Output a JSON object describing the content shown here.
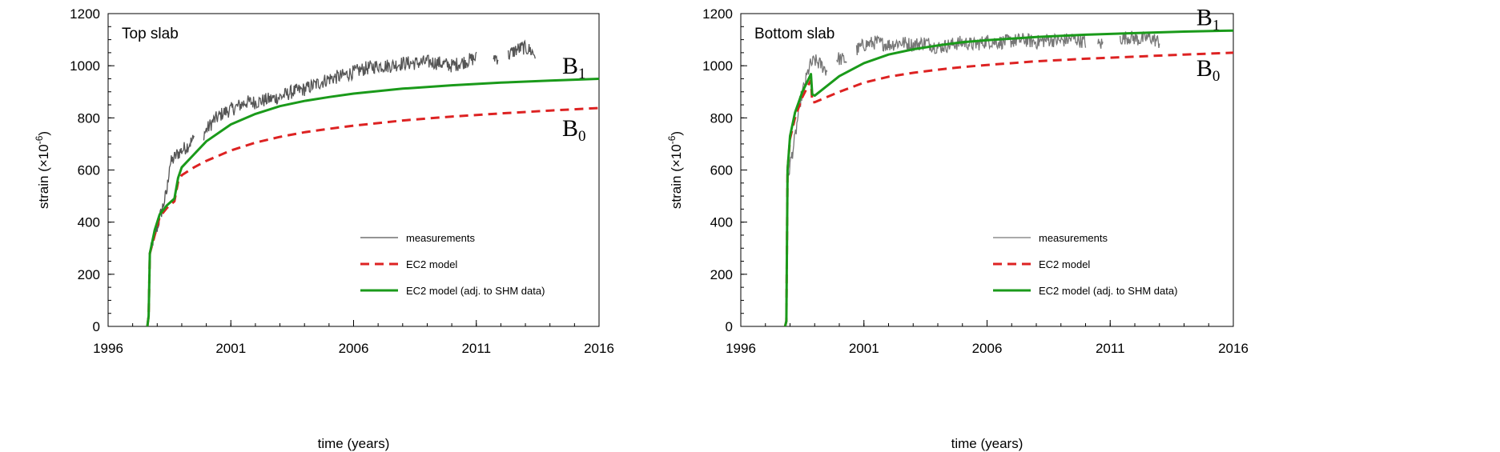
{
  "chart_data": [
    {
      "type": "line",
      "title": "Top slab",
      "xlabel": "time (years)",
      "ylabel_base": "strain (×10",
      "ylabel_exp": "-6",
      "ylabel_close": ")",
      "xlim": [
        1996,
        2016
      ],
      "ylim": [
        0,
        1200
      ],
      "xticks": [
        1996,
        2001,
        2006,
        2011,
        2016
      ],
      "yticks": [
        0,
        200,
        400,
        600,
        800,
        1000,
        1200
      ],
      "legend": [
        "measurements",
        "EC2 model",
        "EC2 model (adj. to SHM data)"
      ],
      "legend_position": "bottom-right",
      "curve_labels": [
        {
          "text": "B",
          "sub": "1",
          "x": 2014.5,
          "y": 970
        },
        {
          "text": "B",
          "sub": "0",
          "x": 2014.5,
          "y": 730
        }
      ],
      "series": [
        {
          "name": "measurements",
          "color": "#555555",
          "style": "noisy",
          "segments": [
            [
              [
                1997.6,
                0
              ],
              [
                1997.65,
                60
              ],
              [
                1997.7,
                260
              ],
              [
                1997.8,
                320
              ],
              [
                1997.9,
                350
              ],
              [
                1998.0,
                380
              ],
              [
                1998.2,
                450
              ],
              [
                1998.4,
                520
              ],
              [
                1998.5,
                620
              ],
              [
                1998.8,
                660
              ],
              [
                1999.2,
                690
              ],
              [
                1999.5,
                720
              ]
            ],
            [
              [
                1999.9,
                740
              ],
              [
                2000.3,
                790
              ],
              [
                2000.7,
                820
              ],
              [
                2001.2,
                840
              ],
              [
                2001.6,
                860
              ],
              [
                2002.0,
                860
              ],
              [
                2002.5,
                870
              ],
              [
                2003.0,
                880
              ],
              [
                2003.5,
                900
              ],
              [
                2004.0,
                910
              ],
              [
                2004.5,
                930
              ],
              [
                2005.0,
                950
              ],
              [
                2005.5,
                960
              ],
              [
                2006.0,
                975
              ],
              [
                2006.5,
                990
              ],
              [
                2007.0,
                1000
              ],
              [
                2007.5,
                1000
              ],
              [
                2008.0,
                1010
              ],
              [
                2008.5,
                1010
              ],
              [
                2009.0,
                1015
              ],
              [
                2009.5,
                1010
              ],
              [
                2010.0,
                1000
              ],
              [
                2010.5,
                1015
              ],
              [
                2011.0,
                1030
              ]
            ],
            [
              [
                2011.7,
                1035
              ],
              [
                2011.9,
                1030
              ]
            ],
            [
              [
                2012.3,
                1040
              ],
              [
                2012.6,
                1060
              ],
              [
                2012.9,
                1070
              ],
              [
                2013.2,
                1060
              ],
              [
                2013.4,
                1040
              ]
            ]
          ]
        },
        {
          "name": "EC2 model",
          "color": "#dd2222",
          "style": "dashed",
          "points": [
            [
              1997.6,
              0
            ],
            [
              1997.65,
              40
            ],
            [
              1997.7,
              280
            ],
            [
              1997.9,
              350
            ],
            [
              1998.1,
              420
            ],
            [
              1998.4,
              455
            ],
            [
              1998.7,
              480
            ],
            [
              1998.85,
              555
            ],
            [
              1999.0,
              580
            ],
            [
              1999.5,
              610
            ],
            [
              2000.0,
              635
            ],
            [
              2001.0,
              675
            ],
            [
              2002.0,
              705
            ],
            [
              2003.0,
              727
            ],
            [
              2004.0,
              745
            ],
            [
              2005.0,
              758
            ],
            [
              2006.0,
              770
            ],
            [
              2008.0,
              790
            ],
            [
              2010.0,
              805
            ],
            [
              2012.0,
              817
            ],
            [
              2014.0,
              828
            ],
            [
              2016.0,
              838
            ]
          ]
        },
        {
          "name": "EC2 model (adj. to SHM data)",
          "color": "#1a9a1a",
          "style": "solid",
          "points": [
            [
              1997.6,
              0
            ],
            [
              1997.65,
              40
            ],
            [
              1997.7,
              280
            ],
            [
              1997.9,
              370
            ],
            [
              1998.1,
              430
            ],
            [
              1998.4,
              465
            ],
            [
              1998.7,
              490
            ],
            [
              1998.85,
              570
            ],
            [
              1999.0,
              610
            ],
            [
              1999.5,
              660
            ],
            [
              2000.0,
              710
            ],
            [
              2001.0,
              775
            ],
            [
              2002.0,
              815
            ],
            [
              2003.0,
              845
            ],
            [
              2004.0,
              865
            ],
            [
              2005.0,
              880
            ],
            [
              2006.0,
              893
            ],
            [
              2008.0,
              912
            ],
            [
              2010.0,
              925
            ],
            [
              2012.0,
              935
            ],
            [
              2014.0,
              943
            ],
            [
              2016.0,
              950
            ]
          ]
        }
      ]
    },
    {
      "type": "line",
      "title": "Bottom slab",
      "xlabel": "time (years)",
      "ylabel_base": "strain (×10",
      "ylabel_exp": "-6",
      "ylabel_close": ")",
      "xlim": [
        1996,
        2016
      ],
      "ylim": [
        0,
        1200
      ],
      "xticks": [
        1996,
        2001,
        2006,
        2011,
        2016
      ],
      "yticks": [
        0,
        200,
        400,
        600,
        800,
        1000,
        1200
      ],
      "legend": [
        "measurements",
        "EC2 model",
        "EC2 model (adj. to SHM data)"
      ],
      "legend_position": "bottom-right",
      "curve_labels": [
        {
          "text": "B",
          "sub": "1",
          "x": 2014.5,
          "y": 1155
        },
        {
          "text": "B",
          "sub": "0",
          "x": 2014.5,
          "y": 960
        }
      ],
      "series": [
        {
          "name": "measurements",
          "color": "#777777",
          "style": "noisy",
          "segments": [
            [
              [
                1997.8,
                0
              ],
              [
                1997.85,
                40
              ],
              [
                1997.9,
                560
              ],
              [
                1998.0,
                620
              ],
              [
                1998.2,
                720
              ],
              [
                1998.4,
                860
              ],
              [
                1998.6,
                930
              ],
              [
                1998.8,
                1000
              ],
              [
                1999.0,
                1020
              ],
              [
                1999.3,
                1000
              ],
              [
                1999.5,
                980
              ]
            ],
            [
              [
                1999.9,
                1030
              ],
              [
                2000.3,
                1020
              ]
            ],
            [
              [
                2000.7,
                1060
              ],
              [
                2001.0,
                1080
              ],
              [
                2001.5,
                1090
              ],
              [
                2002.0,
                1080
              ],
              [
                2002.5,
                1090
              ],
              [
                2003.0,
                1080
              ],
              [
                2003.5,
                1090
              ],
              [
                2004.0,
                1070
              ],
              [
                2004.5,
                1080
              ],
              [
                2005.0,
                1090
              ],
              [
                2005.5,
                1080
              ],
              [
                2006.0,
                1095
              ],
              [
                2006.5,
                1090
              ],
              [
                2007.0,
                1095
              ],
              [
                2007.5,
                1100
              ],
              [
                2008.0,
                1090
              ],
              [
                2008.5,
                1100
              ],
              [
                2009.0,
                1095
              ],
              [
                2009.5,
                1105
              ],
              [
                2010.0,
                1090
              ]
            ],
            [
              [
                2010.5,
                1080
              ],
              [
                2010.7,
                1085
              ]
            ],
            [
              [
                2011.4,
                1105
              ],
              [
                2011.8,
                1110
              ],
              [
                2012.2,
                1100
              ],
              [
                2012.6,
                1110
              ],
              [
                2013.0,
                1090
              ]
            ]
          ]
        },
        {
          "name": "EC2 model",
          "color": "#dd2222",
          "style": "dashed",
          "points": [
            [
              1997.8,
              0
            ],
            [
              1997.85,
              20
            ],
            [
              1997.9,
              600
            ],
            [
              1998.0,
              720
            ],
            [
              1998.2,
              800
            ],
            [
              1998.5,
              880
            ],
            [
              1998.85,
              945
            ],
            [
              1998.9,
              860
            ],
            [
              1999.0,
              860
            ],
            [
              2000.0,
              900
            ],
            [
              2001.0,
              935
            ],
            [
              2002.0,
              958
            ],
            [
              2003.0,
              973
            ],
            [
              2004.0,
              985
            ],
            [
              2005.0,
              995
            ],
            [
              2006.0,
              1003
            ],
            [
              2008.0,
              1017
            ],
            [
              2010.0,
              1027
            ],
            [
              2012.0,
              1035
            ],
            [
              2014.0,
              1043
            ],
            [
              2016.0,
              1050
            ]
          ]
        },
        {
          "name": "EC2 model (adj. to SHM data)",
          "color": "#1a9a1a",
          "style": "solid",
          "points": [
            [
              1997.8,
              0
            ],
            [
              1997.85,
              20
            ],
            [
              1997.9,
              600
            ],
            [
              1998.0,
              730
            ],
            [
              1998.2,
              820
            ],
            [
              1998.5,
              900
            ],
            [
              1998.85,
              968
            ],
            [
              1998.9,
              890
            ],
            [
              1999.0,
              885
            ],
            [
              2000.0,
              960
            ],
            [
              2001.0,
              1010
            ],
            [
              2002.0,
              1043
            ],
            [
              2003.0,
              1063
            ],
            [
              2004.0,
              1078
            ],
            [
              2005.0,
              1090
            ],
            [
              2006.0,
              1098
            ],
            [
              2008.0,
              1110
            ],
            [
              2010.0,
              1119
            ],
            [
              2012.0,
              1125
            ],
            [
              2014.0,
              1131
            ],
            [
              2016.0,
              1135
            ]
          ]
        }
      ]
    }
  ]
}
